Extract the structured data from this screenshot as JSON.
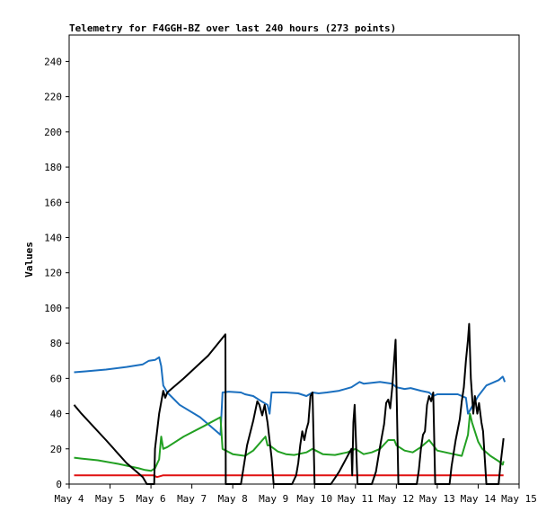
{
  "chart_data": {
    "type": "line",
    "title": "Telemetry for F4GGH-BZ over last 240 hours (273 points)",
    "ylabel": "Values",
    "xlabel": "",
    "ylim": [
      0,
      255
    ],
    "xlim": [
      4.0,
      15.0
    ],
    "grid": false,
    "y_ticks": [
      0,
      20,
      40,
      60,
      80,
      100,
      120,
      140,
      160,
      180,
      200,
      220,
      240
    ],
    "x_ticks": [
      {
        "value": 4,
        "label": "May 4"
      },
      {
        "value": 5,
        "label": "May 5"
      },
      {
        "value": 6,
        "label": "May 6"
      },
      {
        "value": 7,
        "label": "May 7"
      },
      {
        "value": 8,
        "label": "May 8"
      },
      {
        "value": 9,
        "label": "May 9"
      },
      {
        "value": 10,
        "label": "May 10"
      },
      {
        "value": 11,
        "label": "May 11"
      },
      {
        "value": 12,
        "label": "May 12"
      },
      {
        "value": 13,
        "label": "May 13"
      },
      {
        "value": 14,
        "label": "May 14"
      },
      {
        "value": 15,
        "label": "May 15"
      }
    ],
    "series": [
      {
        "color": "#1a6fbf",
        "points": [
          [
            4.12,
            63.5
          ],
          [
            4.4,
            64
          ],
          [
            4.9,
            65
          ],
          [
            5.4,
            66.5
          ],
          [
            5.8,
            68
          ],
          [
            5.95,
            70
          ],
          [
            6.1,
            70.5
          ],
          [
            6.2,
            72
          ],
          [
            6.25,
            67
          ],
          [
            6.3,
            56
          ],
          [
            6.4,
            52
          ],
          [
            6.7,
            45
          ],
          [
            7.2,
            38
          ],
          [
            7.7,
            28
          ],
          [
            7.75,
            52
          ],
          [
            7.9,
            52.5
          ],
          [
            8.2,
            52
          ],
          [
            8.3,
            51
          ],
          [
            8.5,
            50
          ],
          [
            8.7,
            47
          ],
          [
            8.85,
            45
          ],
          [
            8.9,
            40
          ],
          [
            8.95,
            52
          ],
          [
            9.3,
            52
          ],
          [
            9.6,
            51.5
          ],
          [
            9.8,
            50
          ],
          [
            9.95,
            52
          ],
          [
            10.1,
            51.5
          ],
          [
            10.3,
            52
          ],
          [
            10.6,
            53
          ],
          [
            10.9,
            55
          ],
          [
            11.1,
            58
          ],
          [
            11.2,
            57
          ],
          [
            11.6,
            58
          ],
          [
            11.9,
            57
          ],
          [
            12.0,
            55
          ],
          [
            12.2,
            54
          ],
          [
            12.35,
            54.5
          ],
          [
            12.6,
            53
          ],
          [
            12.8,
            52
          ],
          [
            12.9,
            50
          ],
          [
            13.0,
            51
          ],
          [
            13.3,
            51
          ],
          [
            13.5,
            51
          ],
          [
            13.7,
            49
          ],
          [
            13.75,
            40
          ],
          [
            13.85,
            44
          ],
          [
            14.0,
            50
          ],
          [
            14.2,
            56
          ],
          [
            14.5,
            59
          ],
          [
            14.6,
            61
          ],
          [
            14.62,
            60
          ],
          [
            14.65,
            58
          ]
        ]
      },
      {
        "color": "#22a022",
        "points": [
          [
            4.12,
            15
          ],
          [
            4.3,
            14.5
          ],
          [
            4.7,
            13.5
          ],
          [
            5.2,
            11.5
          ],
          [
            5.7,
            9
          ],
          [
            5.85,
            8
          ],
          [
            6.0,
            7.5
          ],
          [
            6.1,
            9
          ],
          [
            6.2,
            14
          ],
          [
            6.25,
            27
          ],
          [
            6.3,
            20
          ],
          [
            6.4,
            21
          ],
          [
            6.8,
            27
          ],
          [
            7.3,
            33
          ],
          [
            7.7,
            38
          ],
          [
            7.75,
            20
          ],
          [
            8.0,
            17
          ],
          [
            8.3,
            16
          ],
          [
            8.5,
            19
          ],
          [
            8.8,
            27
          ],
          [
            8.85,
            22
          ],
          [
            8.9,
            22
          ],
          [
            9.1,
            18.5
          ],
          [
            9.3,
            17
          ],
          [
            9.5,
            16.5
          ],
          [
            9.8,
            18
          ],
          [
            9.95,
            20
          ],
          [
            10.2,
            17
          ],
          [
            10.5,
            16.5
          ],
          [
            10.8,
            18
          ],
          [
            11.0,
            20
          ],
          [
            11.2,
            17
          ],
          [
            11.4,
            18
          ],
          [
            11.6,
            20
          ],
          [
            11.8,
            25
          ],
          [
            11.95,
            25
          ],
          [
            12.0,
            22
          ],
          [
            12.2,
            19
          ],
          [
            12.4,
            18
          ],
          [
            12.6,
            21
          ],
          [
            12.8,
            25
          ],
          [
            12.9,
            22
          ],
          [
            13.0,
            19
          ],
          [
            13.2,
            18
          ],
          [
            13.4,
            17
          ],
          [
            13.6,
            16
          ],
          [
            13.75,
            28
          ],
          [
            13.8,
            40
          ],
          [
            13.85,
            35
          ],
          [
            14.0,
            24
          ],
          [
            14.1,
            20
          ],
          [
            14.3,
            16
          ],
          [
            14.5,
            13
          ],
          [
            14.6,
            11
          ],
          [
            14.62,
            13
          ]
        ]
      },
      {
        "color": "#e01010",
        "points": [
          [
            4.12,
            5
          ],
          [
            6.05,
            5
          ],
          [
            6.15,
            4
          ],
          [
            6.3,
            5
          ],
          [
            14.62,
            5
          ]
        ]
      },
      {
        "color": "#000000",
        "points": [
          [
            4.12,
            45
          ],
          [
            4.3,
            40
          ],
          [
            4.9,
            25
          ],
          [
            5.4,
            12
          ],
          [
            5.8,
            4
          ],
          [
            5.9,
            0
          ],
          [
            6.0,
            0
          ],
          [
            6.08,
            0
          ],
          [
            6.1,
            20
          ],
          [
            6.2,
            40
          ],
          [
            6.3,
            53
          ],
          [
            6.35,
            49
          ],
          [
            6.4,
            52
          ],
          [
            6.8,
            60
          ],
          [
            7.4,
            73
          ],
          [
            7.82,
            85
          ],
          [
            7.83,
            0
          ],
          [
            8.2,
            0
          ],
          [
            8.35,
            22
          ],
          [
            8.5,
            36
          ],
          [
            8.6,
            47
          ],
          [
            8.65,
            45
          ],
          [
            8.72,
            39
          ],
          [
            8.78,
            45
          ],
          [
            8.85,
            35
          ],
          [
            8.95,
            15
          ],
          [
            9.0,
            0
          ],
          [
            9.45,
            0
          ],
          [
            9.55,
            5
          ],
          [
            9.6,
            12
          ],
          [
            9.65,
            22
          ],
          [
            9.7,
            30
          ],
          [
            9.75,
            25
          ],
          [
            9.8,
            31
          ],
          [
            9.85,
            35
          ],
          [
            9.9,
            50
          ],
          [
            9.95,
            52
          ],
          [
            10.0,
            0
          ],
          [
            10.4,
            0
          ],
          [
            10.6,
            7
          ],
          [
            10.9,
            20
          ],
          [
            10.92,
            5
          ],
          [
            10.95,
            35
          ],
          [
            10.98,
            45
          ],
          [
            11.05,
            0
          ],
          [
            11.4,
            0
          ],
          [
            11.5,
            7
          ],
          [
            11.6,
            21
          ],
          [
            11.7,
            34
          ],
          [
            11.75,
            46
          ],
          [
            11.8,
            48
          ],
          [
            11.85,
            43
          ],
          [
            11.9,
            55
          ],
          [
            11.95,
            72
          ],
          [
            11.98,
            82
          ],
          [
            12.05,
            0
          ],
          [
            12.5,
            0
          ],
          [
            12.55,
            8
          ],
          [
            12.6,
            20
          ],
          [
            12.65,
            28
          ],
          [
            12.7,
            30
          ],
          [
            12.75,
            45
          ],
          [
            12.8,
            50
          ],
          [
            12.85,
            47
          ],
          [
            12.9,
            52
          ],
          [
            12.95,
            0
          ],
          [
            13.3,
            0
          ],
          [
            13.35,
            10
          ],
          [
            13.45,
            25
          ],
          [
            13.55,
            37
          ],
          [
            13.6,
            47
          ],
          [
            13.65,
            55
          ],
          [
            13.7,
            70
          ],
          [
            13.75,
            82
          ],
          [
            13.78,
            91
          ],
          [
            13.82,
            60
          ],
          [
            13.88,
            40
          ],
          [
            13.92,
            50
          ],
          [
            13.98,
            40
          ],
          [
            14.02,
            46
          ],
          [
            14.08,
            35
          ],
          [
            14.12,
            30
          ],
          [
            14.2,
            0
          ],
          [
            14.5,
            0
          ],
          [
            14.55,
            12
          ],
          [
            14.6,
            22
          ],
          [
            14.62,
            26
          ]
        ]
      }
    ]
  }
}
